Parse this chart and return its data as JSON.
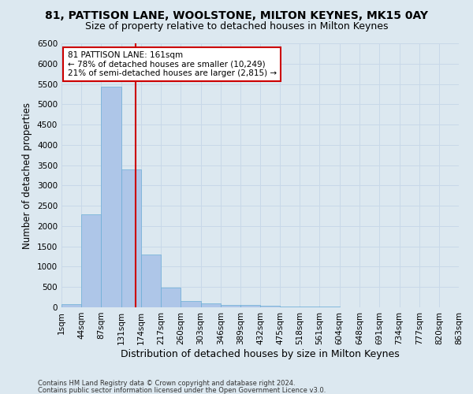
{
  "title": "81, PATTISON LANE, WOOLSTONE, MILTON KEYNES, MK15 0AY",
  "subtitle": "Size of property relative to detached houses in Milton Keynes",
  "xlabel": "Distribution of detached houses by size in Milton Keynes",
  "ylabel": "Number of detached properties",
  "footer_line1": "Contains HM Land Registry data © Crown copyright and database right 2024.",
  "footer_line2": "Contains public sector information licensed under the Open Government Licence v3.0.",
  "annotation_title": "81 PATTISON LANE: 161sqm",
  "annotation_line1": "← 78% of detached houses are smaller (10,249)",
  "annotation_line2": "21% of semi-detached houses are larger (2,815) →",
  "property_size": 161,
  "bin_edges": [
    1,
    44,
    87,
    131,
    174,
    217,
    260,
    303,
    346,
    389,
    432,
    475,
    518,
    561,
    604,
    648,
    691,
    734,
    777,
    820,
    863
  ],
  "bar_heights": [
    70,
    2290,
    5430,
    3390,
    1300,
    480,
    160,
    90,
    65,
    50,
    30,
    20,
    15,
    10,
    8,
    5,
    4,
    3,
    2,
    1
  ],
  "bar_color": "#aec6e8",
  "bar_edge_color": "#6aaed6",
  "vline_color": "#cc0000",
  "vline_x": 161,
  "ylim": [
    0,
    6500
  ],
  "yticks": [
    0,
    500,
    1000,
    1500,
    2000,
    2500,
    3000,
    3500,
    4000,
    4500,
    5000,
    5500,
    6000,
    6500
  ],
  "grid_color": "#c8d8e8",
  "background_color": "#dce8f0",
  "title_fontsize": 10,
  "subtitle_fontsize": 9,
  "axis_label_fontsize": 8.5,
  "tick_fontsize": 7.5,
  "footer_fontsize": 6,
  "annotation_fontsize": 7.5,
  "annotation_box_color": "#ffffff",
  "annotation_box_edge": "#cc0000"
}
